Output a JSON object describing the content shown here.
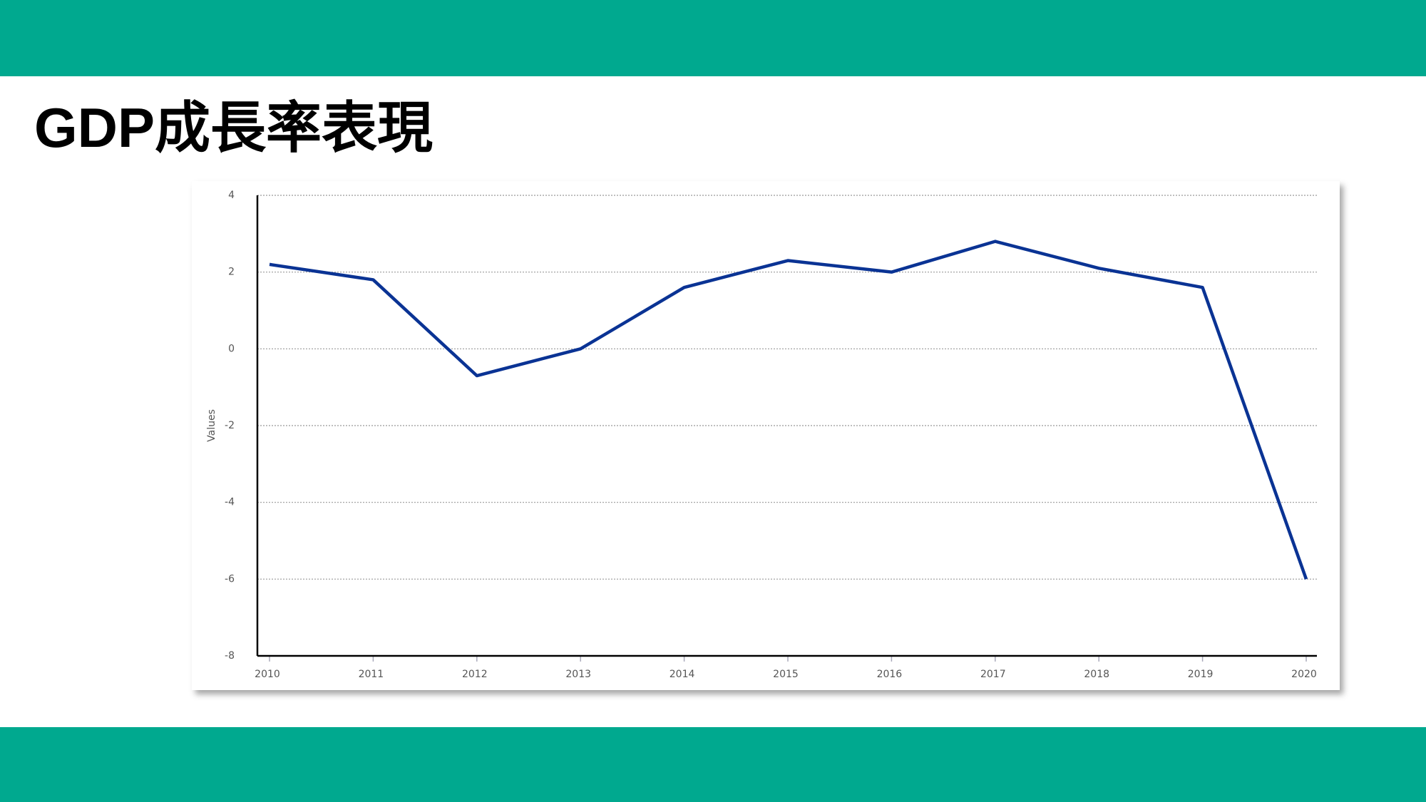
{
  "chart_data": {
    "type": "line",
    "title": "GDP成長率表現",
    "y_label": "Values",
    "categories": [
      "2010",
      "2011",
      "2012",
      "2013",
      "2014",
      "2015",
      "2016",
      "2017",
      "2018",
      "2019",
      "2020"
    ],
    "series": [
      {
        "name": "GDP",
        "color": "#0a3394",
        "values": [
          2.2,
          1.8,
          -0.7,
          0,
          1.6,
          2.3,
          2.0,
          2.8,
          2.1,
          1.6,
          -6.0
        ]
      }
    ],
    "ylim": [
      -8,
      4
    ],
    "yticks": [
      -8,
      -6,
      -4,
      -2,
      0,
      2,
      4
    ],
    "grid": true
  }
}
